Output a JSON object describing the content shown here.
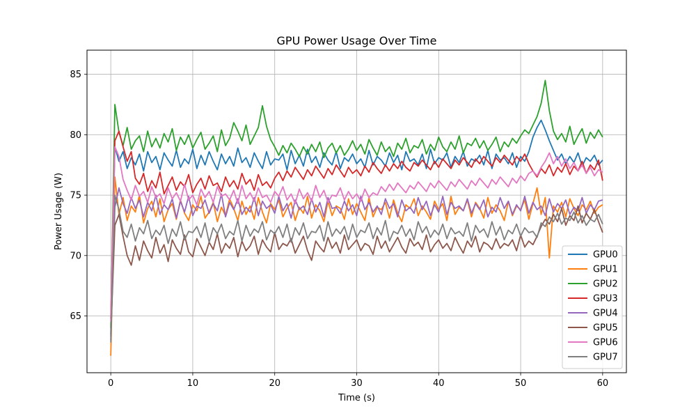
{
  "chart_data": {
    "type": "line",
    "title": "GPU Power Usage Over Time",
    "xlabel": "Time (s)",
    "ylabel": "Power Usage (W)",
    "xlim": [
      -2.9,
      62.9
    ],
    "ylim": [
      60.3,
      87.0
    ],
    "xticks": [
      0,
      10,
      20,
      30,
      40,
      50,
      60
    ],
    "yticks": [
      65,
      70,
      75,
      80,
      85
    ],
    "grid": true,
    "legend": "lower-right",
    "x": [
      0,
      0.5,
      1,
      1.5,
      2,
      2.5,
      3,
      3.5,
      4,
      4.5,
      5,
      5.5,
      6,
      6.5,
      7,
      7.5,
      8,
      8.5,
      9,
      9.5,
      10,
      10.5,
      11,
      11.5,
      12,
      12.5,
      13,
      13.5,
      14,
      14.5,
      15,
      15.5,
      16,
      16.5,
      17,
      17.5,
      18,
      18.5,
      19,
      19.5,
      20,
      20.5,
      21,
      21.5,
      22,
      22.5,
      23,
      23.5,
      24,
      24.5,
      25,
      25.5,
      26,
      26.5,
      27,
      27.5,
      28,
      28.5,
      29,
      29.5,
      30,
      30.5,
      31,
      31.5,
      32,
      32.5,
      33,
      33.5,
      34,
      34.5,
      35,
      35.5,
      36,
      36.5,
      37,
      37.5,
      38,
      38.5,
      39,
      39.5,
      40,
      40.5,
      41,
      41.5,
      42,
      42.5,
      43,
      43.5,
      44,
      44.5,
      45,
      45.5,
      46,
      46.5,
      47,
      47.5,
      48,
      48.5,
      49,
      49.5,
      50,
      50.5,
      51,
      51.5,
      52,
      52.5,
      53,
      53.5,
      54,
      54.5,
      55,
      55.5,
      56,
      56.5,
      57,
      57.5,
      58,
      58.5,
      59,
      59.5,
      60
    ],
    "series": [
      {
        "name": "GPU0",
        "color": "#1f77b4",
        "values": [
          63.5,
          79.0,
          77.8,
          78.6,
          77.2,
          78.1,
          77.5,
          78.4,
          77.0,
          78.6,
          77.7,
          78.2,
          77.1,
          78.5,
          77.9,
          77.4,
          78.7,
          77.3,
          78.0,
          77.6,
          78.8,
          77.2,
          78.3,
          77.5,
          78.6,
          77.8,
          77.1,
          78.4,
          77.6,
          78.2,
          77.4,
          78.9,
          77.7,
          78.1,
          77.3,
          78.5,
          77.8,
          77.2,
          78.6,
          77.5,
          78.0,
          77.9,
          78.4,
          77.1,
          78.7,
          77.6,
          78.3,
          77.4,
          78.8,
          77.7,
          78.2,
          77.3,
          78.5,
          77.9,
          77.5,
          78.6,
          77.2,
          78.1,
          77.8,
          78.4,
          77.6,
          78.0,
          77.3,
          78.7,
          77.5,
          78.2,
          77.9,
          77.4,
          78.5,
          77.7,
          78.3,
          77.1,
          78.6,
          77.8,
          78.0,
          77.5,
          78.4,
          77.2,
          78.8,
          77.6,
          78.1,
          77.9,
          78.5,
          77.3,
          78.2,
          77.7,
          78.6,
          77.4,
          78.0,
          77.8,
          78.3,
          77.5,
          78.7,
          77.2,
          78.4,
          77.9,
          78.1,
          77.6,
          78.5,
          77.3,
          78.2,
          77.8,
          78.6,
          79.8,
          80.6,
          81.2,
          80.4,
          79.5,
          78.7,
          77.9,
          78.4,
          77.6,
          78.2,
          77.7,
          78.5,
          77.4,
          78.1,
          77.8,
          78.3,
          77.5,
          77.9
        ]
      },
      {
        "name": "GPU1",
        "color": "#ff7f0e",
        "values": [
          61.7,
          76.5,
          73.4,
          74.8,
          72.9,
          74.1,
          73.6,
          75.0,
          72.7,
          73.9,
          74.5,
          73.2,
          74.7,
          72.8,
          73.8,
          74.3,
          73.0,
          74.6,
          73.5,
          72.9,
          74.2,
          73.7,
          74.9,
          73.1,
          73.6,
          74.4,
          72.8,
          74.0,
          73.3,
          74.7,
          73.9,
          72.9,
          74.5,
          73.4,
          74.1,
          73.0,
          74.8,
          73.6,
          72.7,
          74.3,
          73.8,
          74.6,
          73.2,
          73.9,
          74.4,
          72.9,
          74.0,
          73.5,
          74.9,
          73.1,
          74.2,
          73.7,
          72.8,
          74.5,
          73.3,
          74.1,
          73.9,
          73.0,
          74.7,
          73.4,
          74.3,
          73.6,
          72.9,
          74.8,
          73.2,
          74.0,
          73.8,
          74.4,
          73.1,
          74.6,
          73.5,
          72.8,
          74.2,
          73.9,
          74.7,
          73.3,
          74.1,
          73.6,
          73.0,
          74.5,
          73.8,
          74.3,
          72.9,
          74.9,
          73.4,
          74.0,
          73.7,
          74.6,
          73.2,
          74.4,
          73.9,
          73.1,
          74.8,
          73.5,
          74.2,
          73.7,
          72.9,
          74.5,
          73.3,
          74.1,
          73.8,
          74.6,
          73.0,
          74.3,
          75.6,
          73.4,
          74.8,
          69.8,
          74.1,
          73.6,
          74.4,
          73.2,
          74.7,
          73.9,
          73.3,
          74.2,
          73.8,
          74.5,
          73.5,
          74.0,
          74.2
        ]
      },
      {
        "name": "GPU2",
        "color": "#2ca02c",
        "values": [
          64.0,
          82.5,
          80.2,
          79.1,
          80.6,
          78.8,
          79.5,
          79.9,
          78.6,
          80.3,
          79.0,
          79.7,
          78.9,
          80.1,
          79.4,
          80.5,
          78.7,
          79.8,
          79.2,
          80.0,
          78.9,
          79.6,
          80.2,
          78.8,
          79.3,
          79.9,
          78.6,
          80.4,
          79.1,
          79.7,
          81.0,
          80.3,
          79.5,
          80.8,
          79.2,
          79.9,
          80.6,
          82.4,
          80.7,
          79.6,
          79.0,
          78.3,
          79.1,
          78.5,
          79.3,
          78.8,
          78.2,
          79.0,
          78.4,
          79.2,
          78.6,
          79.4,
          78.1,
          78.9,
          79.3,
          78.5,
          79.1,
          78.3,
          78.8,
          79.5,
          78.7,
          79.2,
          78.4,
          79.6,
          78.9,
          78.3,
          79.4,
          78.6,
          79.0,
          78.2,
          79.3,
          78.8,
          79.7,
          78.5,
          79.1,
          78.9,
          79.6,
          78.4,
          79.2,
          78.7,
          79.8,
          79.0,
          78.6,
          79.4,
          78.8,
          79.9,
          78.5,
          79.3,
          79.1,
          79.7,
          78.9,
          79.5,
          78.7,
          79.2,
          79.8,
          78.6,
          79.4,
          79.0,
          79.7,
          79.3,
          79.9,
          80.4,
          80.1,
          80.8,
          81.5,
          82.6,
          84.5,
          82.0,
          80.3,
          79.6,
          80.1,
          79.4,
          80.7,
          79.2,
          79.9,
          80.5,
          79.3,
          80.2,
          79.7,
          80.4,
          79.8
        ]
      },
      {
        "name": "GPU3",
        "color": "#d62728",
        "values": [
          64.8,
          79.5,
          80.3,
          79.0,
          77.8,
          78.6,
          76.4,
          75.9,
          76.8,
          75.3,
          76.2,
          75.6,
          76.9,
          75.1,
          75.8,
          76.5,
          75.4,
          76.1,
          75.7,
          76.7,
          75.2,
          75.9,
          76.4,
          75.5,
          76.6,
          75.8,
          76.0,
          75.3,
          76.5,
          75.7,
          76.2,
          75.5,
          76.8,
          75.9,
          76.3,
          75.4,
          76.7,
          75.8,
          76.1,
          75.6,
          76.4,
          76.9,
          76.2,
          77.0,
          76.5,
          77.3,
          76.8,
          76.3,
          77.1,
          76.6,
          77.4,
          76.9,
          76.4,
          77.2,
          76.7,
          77.5,
          77.0,
          76.5,
          77.3,
          76.8,
          77.1,
          76.6,
          77.4,
          76.9,
          77.7,
          77.2,
          76.8,
          77.5,
          77.0,
          77.6,
          77.2,
          77.8,
          77.3,
          77.0,
          77.7,
          77.4,
          77.9,
          77.5,
          77.1,
          77.8,
          77.3,
          78.0,
          77.6,
          77.2,
          77.9,
          77.5,
          78.1,
          77.7,
          77.3,
          78.0,
          77.6,
          78.2,
          77.8,
          77.4,
          78.1,
          77.7,
          78.3,
          77.9,
          77.5,
          78.2,
          77.8,
          78.4,
          77.6,
          77.0,
          76.5,
          77.2,
          76.8,
          77.5,
          76.6,
          77.3,
          76.9,
          77.6,
          76.7,
          77.4,
          77.0,
          77.8,
          76.8,
          77.5,
          77.1,
          77.9,
          76.2
        ]
      },
      {
        "name": "GPU4",
        "color": "#9467bd",
        "values": [
          63.0,
          74.0,
          75.6,
          74.3,
          73.5,
          74.8,
          73.9,
          74.6,
          73.2,
          74.4,
          73.7,
          75.0,
          73.4,
          74.2,
          73.8,
          74.7,
          73.1,
          74.5,
          73.6,
          74.9,
          73.3,
          74.1,
          73.9,
          74.6,
          73.5,
          74.3,
          73.7,
          75.1,
          73.2,
          74.4,
          73.8,
          74.7,
          73.4,
          74.0,
          73.6,
          74.8,
          73.3,
          74.5,
          73.9,
          74.2,
          73.5,
          74.9,
          73.7,
          74.3,
          73.1,
          74.6,
          73.8,
          74.1,
          73.4,
          74.7,
          73.6,
          74.4,
          73.2,
          74.8,
          73.9,
          74.0,
          73.5,
          74.5,
          73.7,
          74.2,
          73.3,
          74.9,
          73.8,
          74.4,
          73.6,
          74.1,
          73.4,
          74.7,
          73.9,
          74.3,
          73.2,
          74.6,
          73.7,
          74.0,
          73.5,
          74.8,
          73.8,
          74.5,
          73.3,
          74.2,
          73.6,
          74.9,
          73.4,
          74.4,
          73.9,
          74.1,
          73.7,
          74.7,
          73.5,
          74.3,
          73.8,
          74.6,
          73.2,
          74.0,
          73.6,
          74.8,
          73.9,
          74.5,
          73.4,
          74.2,
          73.7,
          74.9,
          73.5,
          74.4,
          73.8,
          74.1,
          73.3,
          74.7,
          73.6,
          74.3,
          73.9,
          74.6,
          73.4,
          74.0,
          73.7,
          74.8,
          73.5,
          74.2,
          73.8,
          74.5,
          74.6
        ]
      },
      {
        "name": "GPU5",
        "color": "#8c564b",
        "values": [
          63.3,
          72.5,
          73.4,
          71.6,
          70.0,
          69.2,
          70.8,
          69.6,
          71.2,
          70.4,
          69.8,
          71.5,
          70.2,
          70.9,
          69.5,
          71.3,
          70.6,
          70.1,
          71.7,
          70.3,
          69.9,
          71.4,
          70.7,
          70.0,
          71.1,
          70.5,
          71.8,
          70.2,
          71.0,
          70.6,
          71.5,
          69.9,
          71.2,
          70.4,
          70.8,
          71.6,
          70.1,
          71.3,
          70.7,
          70.3,
          71.9,
          70.5,
          71.0,
          70.8,
          71.4,
          70.2,
          70.9,
          71.6,
          70.4,
          69.6,
          71.2,
          70.7,
          70.3,
          71.5,
          70.6,
          71.1,
          70.2,
          71.7,
          70.5,
          70.9,
          71.3,
          70.4,
          71.0,
          70.8,
          70.1,
          71.6,
          70.6,
          71.2,
          70.3,
          70.9,
          71.5,
          70.7,
          70.2,
          71.4,
          70.8,
          71.1,
          70.5,
          71.7,
          70.3,
          70.9,
          71.3,
          70.6,
          71.0,
          70.4,
          71.5,
          70.8,
          70.2,
          71.2,
          70.7,
          71.6,
          70.3,
          71.1,
          70.9,
          70.5,
          71.4,
          70.6,
          71.0,
          70.8,
          71.3,
          70.4,
          71.7,
          70.7,
          71.2,
          70.9,
          71.6,
          72.4,
          73.0,
          72.6,
          73.4,
          72.8,
          73.9,
          72.5,
          73.3,
          72.9,
          74.1,
          72.7,
          73.5,
          73.0,
          73.8,
          72.8,
          71.9
        ]
      },
      {
        "name": "GPU6",
        "color": "#e377c2",
        "values": [
          64.5,
          79.0,
          78.2,
          76.3,
          75.4,
          74.6,
          75.8,
          74.9,
          75.3,
          74.4,
          75.7,
          74.8,
          75.1,
          74.3,
          75.6,
          74.7,
          75.2,
          74.5,
          75.9,
          74.6,
          75.0,
          74.2,
          75.5,
          74.8,
          75.3,
          74.4,
          75.7,
          74.9,
          75.1,
          74.6,
          75.4,
          74.3,
          75.8,
          74.7,
          75.2,
          74.5,
          75.6,
          74.8,
          75.0,
          74.4,
          75.3,
          74.9,
          75.7,
          74.6,
          75.1,
          74.3,
          75.5,
          74.7,
          75.2,
          74.5,
          75.8,
          74.8,
          75.4,
          74.4,
          75.0,
          74.9,
          75.6,
          74.6,
          75.3,
          74.7,
          75.1,
          74.5,
          75.5,
          74.8,
          75.2,
          75.0,
          75.7,
          75.3,
          75.9,
          75.4,
          76.0,
          75.6,
          75.2,
          75.8,
          75.5,
          76.1,
          75.7,
          75.3,
          76.0,
          75.6,
          76.2,
          75.8,
          75.4,
          76.1,
          75.7,
          76.3,
          75.9,
          75.5,
          76.2,
          75.8,
          76.4,
          76.0,
          75.6,
          76.3,
          75.9,
          76.5,
          76.1,
          75.7,
          76.4,
          76.0,
          76.6,
          76.2,
          76.8,
          77.0,
          76.6,
          77.3,
          77.8,
          78.5,
          77.6,
          78.2,
          77.4,
          78.0,
          77.2,
          77.7,
          77.0,
          77.5,
          76.8,
          77.3,
          76.6,
          77.1,
          76.9
        ]
      },
      {
        "name": "GPU7",
        "color": "#7f7f7f",
        "values": [
          62.8,
          75.0,
          73.8,
          72.0,
          71.5,
          72.6,
          71.2,
          72.3,
          71.8,
          72.9,
          71.4,
          72.1,
          71.7,
          72.5,
          71.0,
          72.2,
          71.6,
          72.8,
          71.3,
          72.0,
          71.9,
          72.4,
          71.5,
          72.7,
          71.1,
          72.3,
          71.8,
          72.6,
          71.4,
          72.0,
          71.7,
          72.9,
          71.2,
          72.5,
          71.6,
          72.2,
          71.9,
          72.8,
          71.3,
          72.1,
          71.8,
          72.4,
          71.5,
          72.6,
          71.1,
          72.3,
          71.7,
          72.7,
          71.4,
          72.0,
          71.9,
          72.5,
          71.2,
          72.8,
          71.6,
          72.2,
          71.8,
          72.4,
          71.3,
          72.6,
          71.5,
          72.1,
          71.9,
          72.7,
          71.4,
          72.3,
          71.7,
          72.9,
          71.2,
          72.0,
          71.8,
          72.5,
          71.6,
          72.2,
          71.3,
          72.8,
          71.9,
          72.4,
          71.5,
          72.1,
          71.7,
          72.6,
          71.4,
          72.3,
          71.8,
          72.0,
          71.6,
          72.7,
          71.2,
          72.5,
          71.9,
          72.2,
          71.5,
          72.8,
          71.7,
          72.4,
          71.3,
          72.1,
          71.8,
          72.6,
          71.6,
          72.3,
          71.9,
          72.0,
          71.5,
          72.7,
          72.4,
          73.2,
          72.8,
          73.5,
          72.6,
          73.1,
          72.9,
          73.6,
          72.7,
          73.3,
          72.5,
          73.0,
          72.8,
          73.4,
          72.6
        ]
      }
    ]
  }
}
